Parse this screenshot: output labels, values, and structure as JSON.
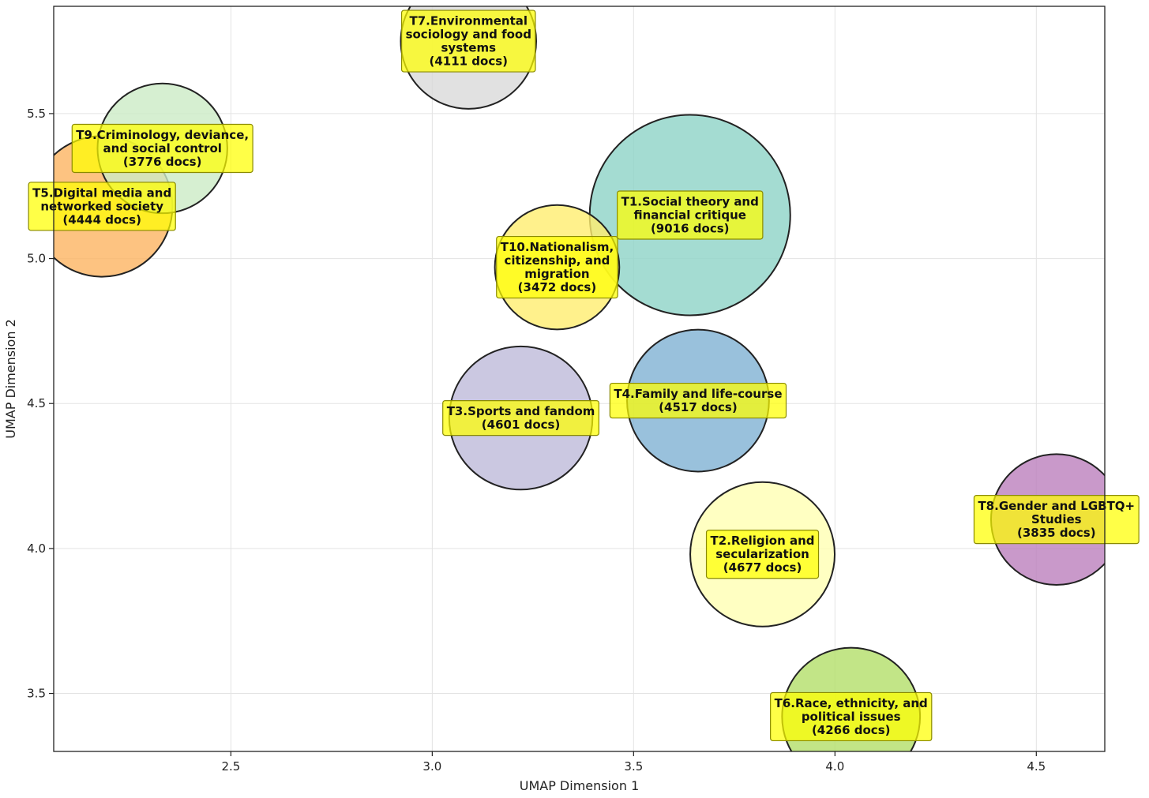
{
  "chart_data": {
    "type": "scatter",
    "xlabel": "UMAP Dimension 1",
    "ylabel": "UMAP Dimension 2",
    "xlim": [
      2.06,
      4.67
    ],
    "ylim": [
      3.3,
      5.87
    ],
    "xticks": [
      2.5,
      3.0,
      3.5,
      4.0,
      4.5
    ],
    "xtick_labels": [
      "2.5",
      "3.0",
      "3.5",
      "4.0",
      "4.5"
    ],
    "yticks": [
      3.5,
      4.0,
      4.5,
      5.0,
      5.5
    ],
    "ytick_labels": [
      "3.5",
      "4.0",
      "4.5",
      "5.0",
      "5.5"
    ],
    "grid": true,
    "bubble_size_field": "docs",
    "points": [
      {
        "label": [
          "T1.Social theory and",
          "financial critique",
          "(9016 docs)"
        ],
        "x": 3.64,
        "y": 5.15,
        "docs": 9016,
        "color": "#8dd3c7"
      },
      {
        "label": [
          "T2.Religion and",
          "secularization",
          "(4677 docs)"
        ],
        "x": 3.82,
        "y": 3.98,
        "docs": 4677,
        "color": "#ffffb3"
      },
      {
        "label": [
          "T3.Sports and fandom",
          "(4601 docs)"
        ],
        "x": 3.22,
        "y": 4.45,
        "docs": 4601,
        "color": "#bebada"
      },
      {
        "label": [
          "T4.Family and life-course",
          "(4517 docs)"
        ],
        "x": 3.66,
        "y": 4.51,
        "docs": 4517,
        "color": "#80b1d3"
      },
      {
        "label": [
          "T5.Digital media and",
          "networked society",
          "(4444 docs)"
        ],
        "x": 2.18,
        "y": 5.18,
        "docs": 4444,
        "color": "#fdb462"
      },
      {
        "label": [
          "T6.Race, ethnicity, and",
          "political issues",
          "(4266 docs)"
        ],
        "x": 4.04,
        "y": 3.42,
        "docs": 4266,
        "color": "#b3de69"
      },
      {
        "label": [
          "T7.Environmental",
          "sociology and food",
          "systems",
          "(4111 docs)"
        ],
        "x": 3.09,
        "y": 5.75,
        "docs": 4111,
        "color": "#d9d9d9"
      },
      {
        "label": [
          "T8.Gender and LGBTQ+",
          "Studies",
          "(3835 docs)"
        ],
        "x": 4.55,
        "y": 4.1,
        "docs": 3835,
        "color": "#bc80bd"
      },
      {
        "label": [
          "T9.Criminology, deviance,",
          "and social control",
          "(3776 docs)"
        ],
        "x": 2.33,
        "y": 5.38,
        "docs": 3776,
        "color": "#ccebc5"
      },
      {
        "label": [
          "T10.Nationalism,",
          "citizenship, and",
          "migration",
          "(3472 docs)"
        ],
        "x": 3.31,
        "y": 4.97,
        "docs": 3472,
        "color": "#ffed6f"
      }
    ]
  },
  "colors": {
    "label_box_fill": "#ffff00",
    "label_box_stroke": "#8a8a00",
    "bubble_stroke": "#222222",
    "grid": "#e3e3e3",
    "axes": "#222222"
  }
}
